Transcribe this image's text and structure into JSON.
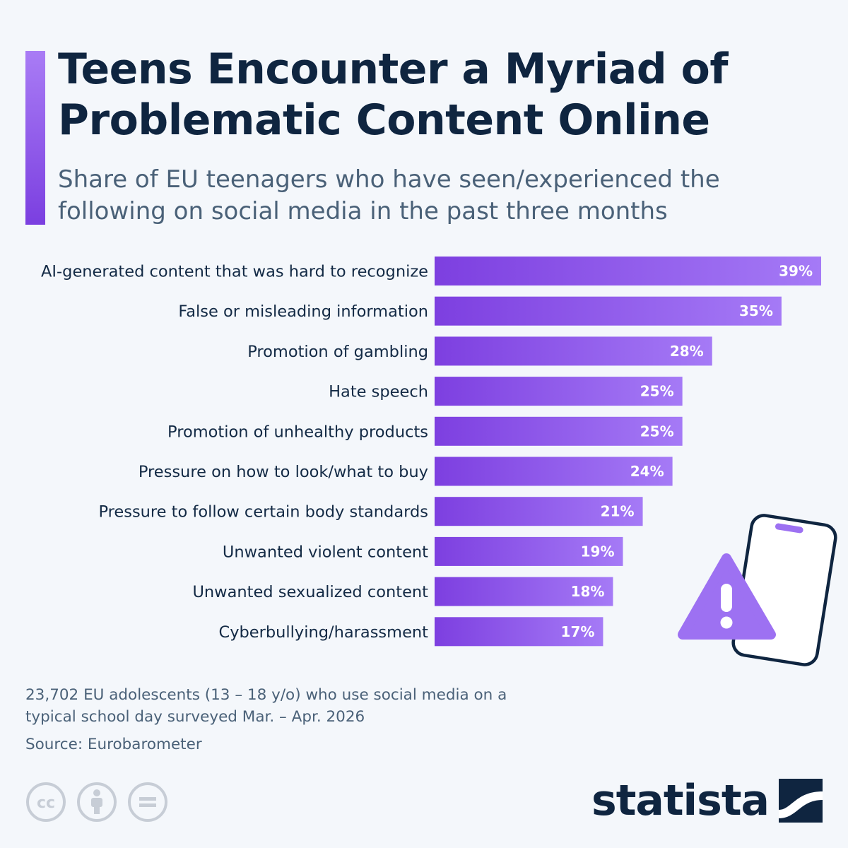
{
  "header": {
    "title": "Teens Encounter a Myriad of Problematic Content Online",
    "subtitle": "Share of EU teenagers who have seen/experienced the following on social media in the past three months"
  },
  "chart_data": {
    "type": "bar",
    "orientation": "horizontal",
    "categories": [
      "AI-generated content that was hard to recognize",
      "False or misleading information",
      "Promotion of gambling",
      "Hate speech",
      "Promotion of unhealthy products",
      "Pressure on how to look/what to buy",
      "Pressure to follow certain body standards",
      "Unwanted violent content",
      "Unwanted sexualized content",
      "Cyberbullying/harassment"
    ],
    "values": [
      39,
      35,
      28,
      25,
      25,
      24,
      21,
      19,
      18,
      17
    ],
    "value_labels": [
      "39%",
      "35%",
      "28%",
      "25%",
      "25%",
      "24%",
      "21%",
      "19%",
      "18%",
      "17%"
    ],
    "unit": "%",
    "xlim": [
      0,
      39
    ],
    "grid": false,
    "legend": "none",
    "colors": {
      "bar_start": "#7d3fe0",
      "bar_end": "#a57af6",
      "accent": "#8b56ea"
    }
  },
  "illustration": {
    "icons": [
      "smartphone-icon",
      "warning-triangle-icon"
    ],
    "colors": {
      "outline": "#0f2540",
      "fill": "#9d71f2",
      "phone_body": "#ffffff"
    }
  },
  "footer": {
    "note": "23,702 EU adolescents (13 – 18 y/o) who use social media on a typical school day surveyed Mar. – Apr. 2026",
    "source": "Source: Eurobarometer",
    "license_icons": [
      "cc-icon",
      "attribution-icon",
      "no-derivatives-icon"
    ],
    "brand": "statista",
    "brand_logo": "statista-logo-icon"
  }
}
